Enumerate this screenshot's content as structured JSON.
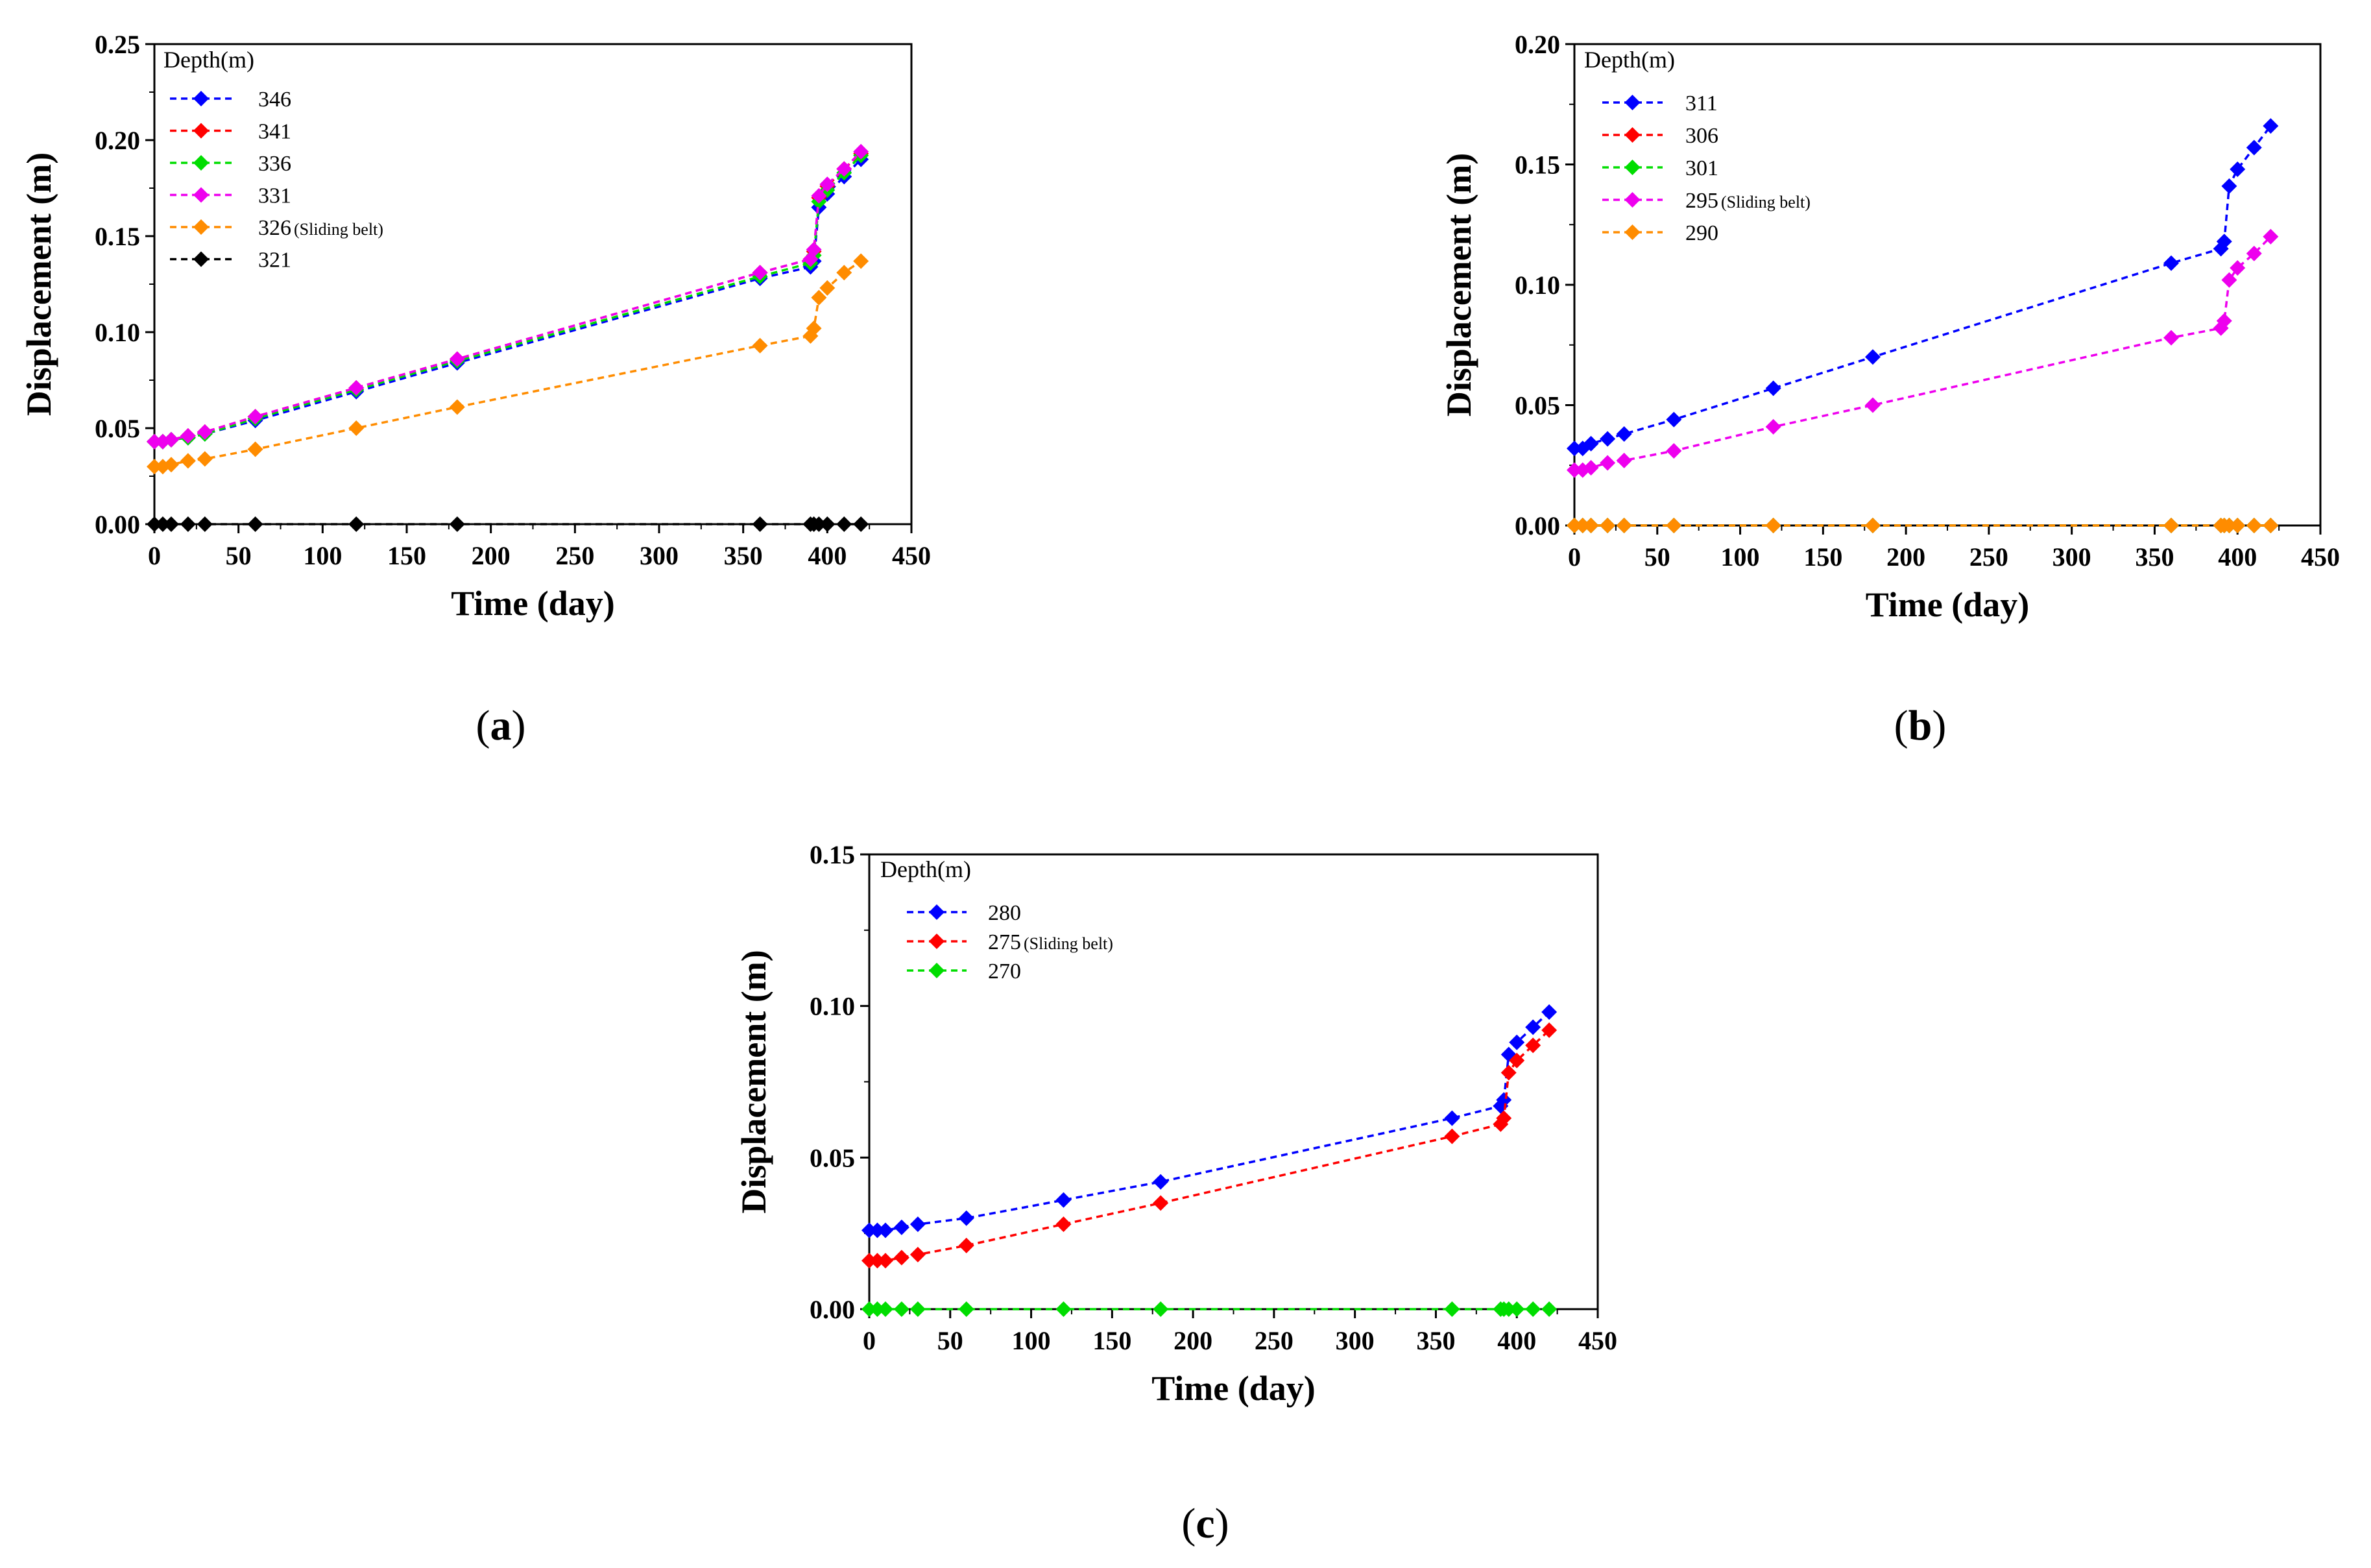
{
  "chart_data": [
    {
      "id": "a",
      "type": "line",
      "panel_label": "a",
      "xlabel": "Time (day)",
      "ylabel": "Displacement (m)",
      "xlim": [
        0,
        450
      ],
      "ylim": [
        0,
        0.25
      ],
      "xticks": [
        "0",
        "50",
        "100",
        "150",
        "200",
        "250",
        "300",
        "350",
        "400",
        "450"
      ],
      "yticks": [
        "0.00",
        "0.05",
        "0.10",
        "0.15",
        "0.20",
        "0.25"
      ],
      "legend_title": "Depth(m)",
      "x": [
        0,
        5,
        10,
        20,
        30,
        60,
        120,
        180,
        360,
        390,
        392,
        395,
        400,
        410,
        420
      ],
      "series": [
        {
          "name": "346",
          "sub": "",
          "color": "#0000ff",
          "values": [
            0.043,
            0.043,
            0.044,
            0.045,
            0.047,
            0.054,
            0.069,
            0.084,
            0.128,
            0.134,
            0.137,
            0.165,
            0.172,
            0.181,
            0.19
          ]
        },
        {
          "name": "341",
          "sub": "",
          "color": "#ff0000",
          "values": [
            0.043,
            0.043,
            0.044,
            0.046,
            0.048,
            0.056,
            0.071,
            0.086,
            0.131,
            0.138,
            0.142,
            0.17,
            0.176,
            0.185,
            0.193
          ]
        },
        {
          "name": "336",
          "sub": "",
          "color": "#00dd00",
          "values": [
            0.043,
            0.043,
            0.044,
            0.045,
            0.047,
            0.055,
            0.07,
            0.085,
            0.129,
            0.136,
            0.14,
            0.168,
            0.174,
            0.183,
            0.192
          ]
        },
        {
          "name": "331",
          "sub": "",
          "color": "#ee00ee",
          "values": [
            0.043,
            0.043,
            0.044,
            0.046,
            0.048,
            0.056,
            0.071,
            0.086,
            0.131,
            0.138,
            0.143,
            0.171,
            0.177,
            0.185,
            0.194
          ]
        },
        {
          "name": "326",
          "sub": "(Sliding belt)",
          "color": "#ff8c00",
          "values": [
            0.03,
            0.03,
            0.031,
            0.033,
            0.034,
            0.039,
            0.05,
            0.061,
            0.093,
            0.098,
            0.102,
            0.118,
            0.123,
            0.131,
            0.137
          ]
        },
        {
          "name": "321",
          "sub": "",
          "color": "#000000",
          "values": [
            0,
            0,
            0,
            0,
            0,
            0,
            0,
            0,
            0,
            0,
            0,
            0,
            0,
            0,
            0
          ]
        }
      ]
    },
    {
      "id": "b",
      "type": "line",
      "panel_label": "b",
      "xlabel": "Time (day)",
      "ylabel": "Displacement (m)",
      "xlim": [
        0,
        450
      ],
      "ylim": [
        0,
        0.2
      ],
      "xticks": [
        "0",
        "50",
        "100",
        "150",
        "200",
        "250",
        "300",
        "350",
        "400",
        "450"
      ],
      "yticks": [
        "0.00",
        "0.05",
        "0.10",
        "0.15",
        "0.20"
      ],
      "legend_title": "Depth(m)",
      "x": [
        0,
        5,
        10,
        20,
        30,
        60,
        120,
        180,
        360,
        390,
        392,
        395,
        400,
        410,
        420
      ],
      "series": [
        {
          "name": "311",
          "sub": "",
          "color": "#0000ff",
          "values": [
            0.032,
            0.032,
            0.034,
            0.036,
            0.038,
            0.044,
            0.057,
            0.07,
            0.109,
            0.115,
            0.118,
            0.141,
            0.148,
            0.157,
            0.166
          ]
        },
        {
          "name": "306",
          "sub": "",
          "color": "#ff0000",
          "values": [
            0,
            0,
            0,
            0,
            0,
            0,
            0,
            0,
            0,
            0,
            0,
            0,
            0,
            0,
            0
          ]
        },
        {
          "name": "301",
          "sub": "",
          "color": "#00dd00",
          "values": [
            0,
            0,
            0,
            0,
            0,
            0,
            0,
            0,
            0,
            0,
            0,
            0,
            0,
            0,
            0
          ]
        },
        {
          "name": "295",
          "sub": "(Sliding belt)",
          "color": "#ee00ee",
          "values": [
            0.023,
            0.023,
            0.024,
            0.026,
            0.027,
            0.031,
            0.041,
            0.05,
            0.078,
            0.082,
            0.085,
            0.102,
            0.107,
            0.113,
            0.12
          ]
        },
        {
          "name": "290",
          "sub": "",
          "color": "#ff8c00",
          "values": [
            0,
            0,
            0,
            0,
            0,
            0,
            0,
            0,
            0,
            0,
            0,
            0,
            0,
            0,
            0
          ]
        }
      ]
    },
    {
      "id": "c",
      "type": "line",
      "panel_label": "c",
      "xlabel": "Time (day)",
      "ylabel": "Displacement (m)",
      "xlim": [
        0,
        450
      ],
      "ylim": [
        0,
        0.15
      ],
      "xticks": [
        "0",
        "50",
        "100",
        "150",
        "200",
        "250",
        "300",
        "350",
        "400",
        "450"
      ],
      "yticks": [
        "0.00",
        "0.05",
        "0.10",
        "0.15"
      ],
      "legend_title": "Depth(m)",
      "x": [
        0,
        5,
        10,
        20,
        30,
        60,
        120,
        180,
        360,
        390,
        392,
        395,
        400,
        410,
        420
      ],
      "series": [
        {
          "name": "280",
          "sub": "",
          "color": "#0000ff",
          "values": [
            0.026,
            0.026,
            0.026,
            0.027,
            0.028,
            0.03,
            0.036,
            0.042,
            0.063,
            0.067,
            0.069,
            0.084,
            0.088,
            0.093,
            0.098
          ]
        },
        {
          "name": "275",
          "sub": "(Sliding belt)",
          "color": "#ff0000",
          "values": [
            0.016,
            0.016,
            0.016,
            0.017,
            0.018,
            0.021,
            0.028,
            0.035,
            0.057,
            0.061,
            0.063,
            0.078,
            0.082,
            0.087,
            0.092
          ]
        },
        {
          "name": "270",
          "sub": "",
          "color": "#00dd00",
          "values": [
            0,
            0,
            0,
            0,
            0,
            0,
            0,
            0,
            0,
            0,
            0,
            0,
            0,
            0,
            0
          ]
        }
      ]
    }
  ]
}
